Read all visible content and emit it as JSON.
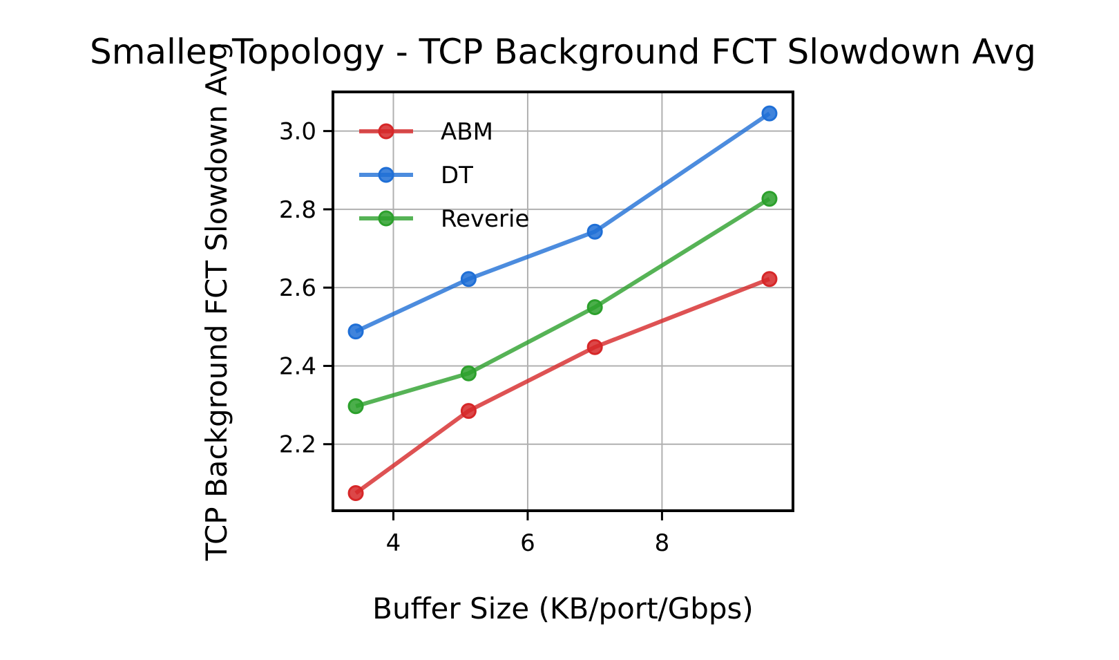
{
  "chart_data": {
    "type": "line",
    "title": "Smaller Topology - TCP Background FCT Slowdown Avg",
    "xlabel": "Buffer Size (KB/port/Gbps)",
    "ylabel": "TCP Background FCT Slowdown Avg",
    "xlim": [
      3.1,
      9.95
    ],
    "ylim": [
      2.03,
      3.1
    ],
    "xticks": [
      4,
      6,
      8
    ],
    "xtick_labels": [
      "4",
      "6",
      "8"
    ],
    "yticks": [
      2.2,
      2.4,
      2.6,
      2.8,
      3.0
    ],
    "ytick_labels": [
      "2.2",
      "2.4",
      "2.6",
      "2.8",
      "3.0"
    ],
    "grid": true,
    "legend_position": "upper-left",
    "x": [
      3.44,
      5.12,
      7.0,
      9.6
    ],
    "series": [
      {
        "name": "ABM",
        "color": "#d62728",
        "values": [
          2.075,
          2.285,
          2.448,
          2.622
        ]
      },
      {
        "name": "DT",
        "color": "#1f6fd6",
        "values": [
          2.488,
          2.622,
          2.743,
          3.045
        ]
      },
      {
        "name": "Reverie",
        "color": "#2ca02c",
        "values": [
          2.297,
          2.381,
          2.55,
          2.827
        ]
      }
    ]
  }
}
